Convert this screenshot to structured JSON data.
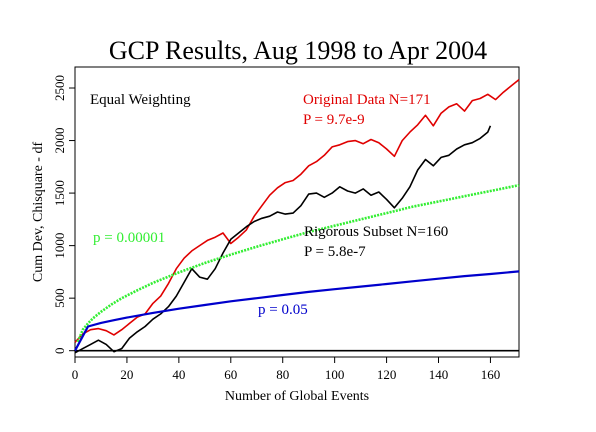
{
  "chart_data": {
    "type": "line",
    "title": "GCP Results, Aug 1998 to Apr 2004",
    "xlabel": "Number of Global Events",
    "ylabel": "Cum Dev, Chisquare - df",
    "xlim": [
      0,
      171
    ],
    "ylim": [
      -60,
      2700
    ],
    "x_ticks": [
      0,
      20,
      40,
      60,
      80,
      100,
      120,
      140,
      160
    ],
    "y_ticks": [
      0,
      500,
      1000,
      1500,
      2000,
      2500
    ],
    "x_tick_labels": [
      "0",
      "20",
      "40",
      "60",
      "80",
      "100",
      "120",
      "140",
      "160"
    ],
    "y_tick_labels": [
      "0",
      "500",
      "1000",
      "1500",
      "2000",
      "2500"
    ],
    "grid": false,
    "annotations": {
      "weighting": "Equal Weighting",
      "original_label": "Original Data N=171",
      "original_p": "P = 9.7e-9",
      "subset_label": "Rigorous Subset N=160",
      "subset_p": "P = 5.8e-7",
      "p_high": "p = 0.00001",
      "p_low": "p = 0.05"
    },
    "colors": {
      "original": "#e00000",
      "subset": "#000000",
      "p_high": "#33ee33",
      "p_low": "#0000cc",
      "zero": "#000000"
    },
    "series": [
      {
        "name": "Original Data N=171",
        "x": [
          0,
          3,
          6,
          9,
          12,
          15,
          18,
          21,
          24,
          27,
          30,
          33,
          36,
          39,
          42,
          45,
          48,
          51,
          54,
          57,
          60,
          63,
          66,
          69,
          72,
          75,
          78,
          81,
          84,
          87,
          90,
          93,
          96,
          99,
          102,
          105,
          108,
          111,
          114,
          117,
          120,
          123,
          126,
          129,
          132,
          135,
          138,
          141,
          144,
          147,
          150,
          153,
          156,
          159,
          162,
          165,
          168,
          171
        ],
        "y": [
          80,
          160,
          200,
          210,
          190,
          150,
          200,
          260,
          320,
          350,
          450,
          520,
          640,
          780,
          880,
          950,
          1000,
          1050,
          1080,
          1120,
          1020,
          1080,
          1150,
          1280,
          1380,
          1480,
          1550,
          1600,
          1620,
          1680,
          1760,
          1800,
          1860,
          1940,
          1960,
          1990,
          2000,
          1970,
          2010,
          1980,
          1920,
          1850,
          2000,
          2080,
          2150,
          2240,
          2140,
          2260,
          2320,
          2350,
          2280,
          2380,
          2400,
          2440,
          2390,
          2460,
          2520,
          2580
        ]
      },
      {
        "name": "Rigorous Subset N=160",
        "x": [
          0,
          3,
          6,
          9,
          12,
          15,
          18,
          21,
          24,
          27,
          30,
          33,
          36,
          39,
          42,
          45,
          48,
          51,
          54,
          57,
          60,
          63,
          66,
          69,
          72,
          75,
          78,
          81,
          84,
          87,
          90,
          93,
          96,
          99,
          102,
          105,
          108,
          111,
          114,
          117,
          120,
          123,
          126,
          129,
          132,
          135,
          138,
          141,
          144,
          147,
          150,
          153,
          156,
          159,
          160
        ],
        "y": [
          -20,
          20,
          60,
          100,
          60,
          -10,
          20,
          120,
          180,
          230,
          300,
          350,
          420,
          520,
          650,
          780,
          700,
          680,
          780,
          930,
          1060,
          1120,
          1180,
          1230,
          1260,
          1280,
          1320,
          1300,
          1310,
          1380,
          1490,
          1500,
          1460,
          1500,
          1560,
          1520,
          1500,
          1540,
          1480,
          1510,
          1440,
          1360,
          1450,
          1560,
          1720,
          1820,
          1760,
          1840,
          1860,
          1920,
          1960,
          1980,
          2020,
          2080,
          2140
        ]
      },
      {
        "name": "p = 0.00001",
        "x": [
          1,
          2,
          3,
          5,
          7,
          10,
          14,
          18,
          24,
          30,
          40,
          50,
          60,
          70,
          80,
          90,
          100,
          110,
          120,
          130,
          140,
          150,
          160,
          171
        ],
        "y": [
          85,
          140,
          200,
          260,
          310,
          370,
          440,
          500,
          575,
          645,
          745,
          835,
          915,
          990,
          1060,
          1130,
          1190,
          1250,
          1310,
          1370,
          1420,
          1470,
          1520,
          1575
        ]
      },
      {
        "name": "p = 0.05",
        "x": [
          0,
          5,
          10,
          15,
          20,
          30,
          40,
          50,
          60,
          70,
          80,
          90,
          100,
          110,
          120,
          130,
          140,
          150,
          160,
          171
        ],
        "y": [
          0,
          230,
          265,
          290,
          315,
          360,
          400,
          435,
          470,
          500,
          530,
          560,
          585,
          610,
          635,
          660,
          685,
          710,
          730,
          755
        ]
      }
    ]
  }
}
